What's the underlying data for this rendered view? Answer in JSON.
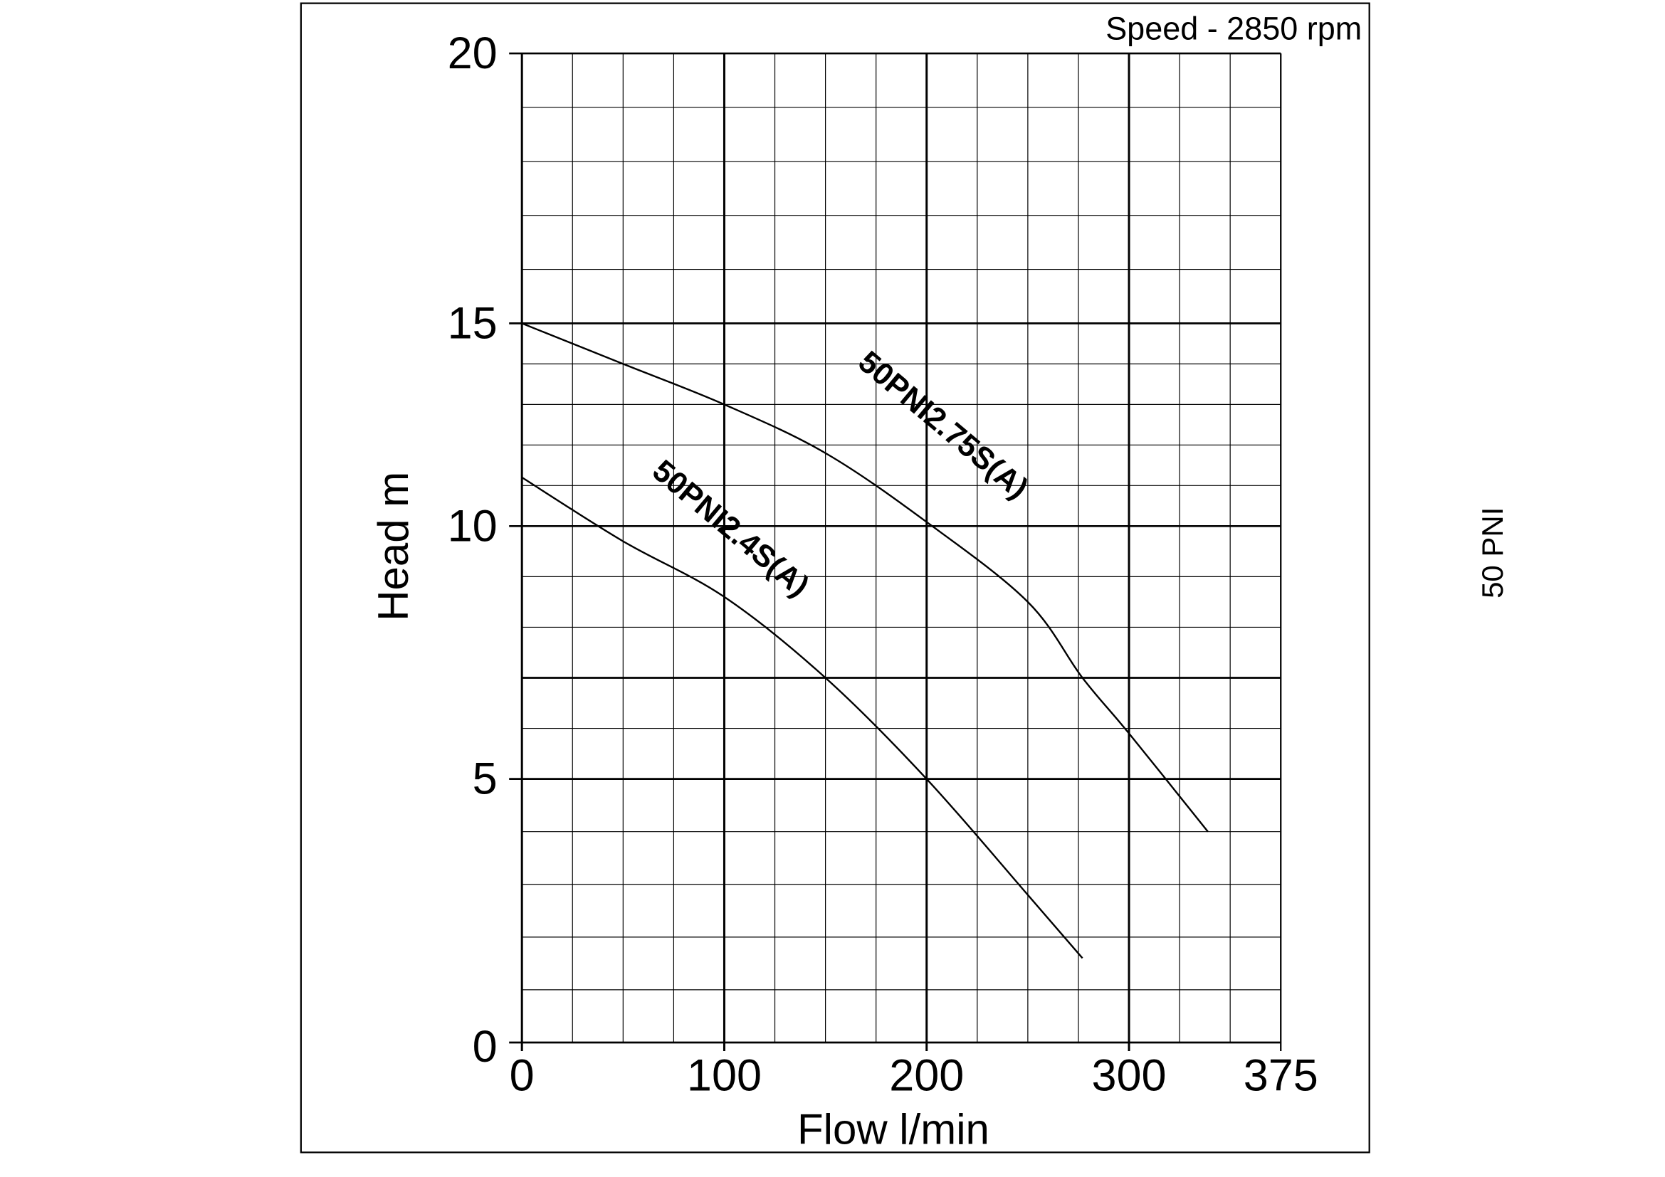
{
  "chart_data": {
    "type": "line",
    "title": "",
    "annotation_speed": "Speed - 2850 rpm",
    "side_label": "50 PNI",
    "xlabel": "Flow l/min",
    "ylabel": "Head m",
    "xlim": [
      0,
      375
    ],
    "ylim": [
      0,
      20
    ],
    "x_ticks": [
      "0",
      "100",
      "200",
      "300",
      "375"
    ],
    "y_ticks": [
      "0",
      "5",
      "10",
      "15",
      "20"
    ],
    "grid": true,
    "legend": "none (inline curve labels)",
    "series": [
      {
        "name": "50PNI2.4S(A)",
        "x": [
          0,
          50,
          100,
          150,
          200,
          250,
          277
        ],
        "y": [
          11.2,
          9.7,
          8.6,
          7.0,
          5.0,
          2.8,
          1.6
        ]
      },
      {
        "name": "50PNI2.75S(A)",
        "x": [
          0,
          50,
          100,
          150,
          200,
          250,
          277,
          300,
          339
        ],
        "y": [
          15.0,
          14.0,
          13.0,
          11.8,
          10.1,
          8.5,
          7.0,
          5.9,
          4.0
        ]
      }
    ],
    "colors": {
      "line": "#000000",
      "grid": "#000000"
    }
  }
}
